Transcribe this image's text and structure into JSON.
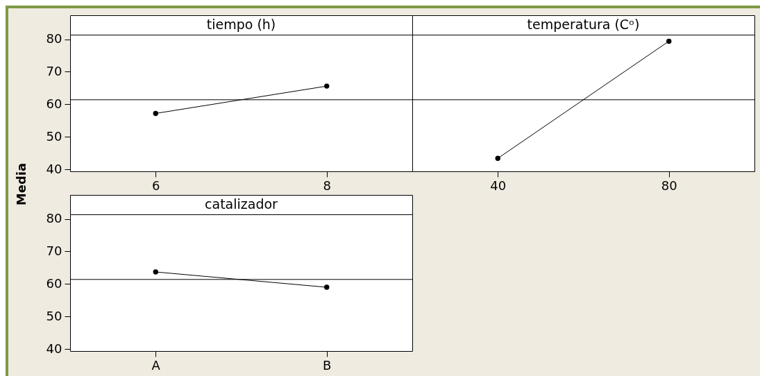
{
  "chart_data": [
    {
      "type": "line",
      "title": "tiempo (h)",
      "ylabel": "Media",
      "categories": [
        "6",
        "8"
      ],
      "series": [
        {
          "color": "#000000",
          "values": [
            57.2,
            65.6
          ]
        }
      ],
      "ylim": [
        39.4,
        81.4
      ],
      "yticks": [
        40,
        50,
        60,
        70,
        80
      ],
      "ref_lines": [
        {
          "axis": "y",
          "value": 61.4,
          "color": "#000000"
        }
      ],
      "marker": "circle"
    },
    {
      "type": "line",
      "title": "temperatura (Cᵒ)",
      "categories": [
        "40",
        "80"
      ],
      "series": [
        {
          "color": "#000000",
          "values": [
            43.4,
            79.4
          ]
        }
      ],
      "ylim": [
        39.4,
        81.4
      ],
      "tick_labels": "x",
      "ref_lines": [
        {
          "axis": "y",
          "value": 61.4,
          "color": "#000000"
        }
      ],
      "marker": "circle"
    },
    {
      "type": "line",
      "title": "catalizador",
      "categories": [
        "A",
        "B"
      ],
      "series": [
        {
          "color": "#000000",
          "values": [
            63.7,
            59.0
          ]
        }
      ],
      "ylim": [
        39.4,
        81.4
      ],
      "yticks": [
        40,
        50,
        60,
        70,
        80
      ],
      "ref_lines": [
        {
          "axis": "y",
          "value": 61.4,
          "color": "#000000"
        }
      ],
      "marker": "circle"
    }
  ]
}
